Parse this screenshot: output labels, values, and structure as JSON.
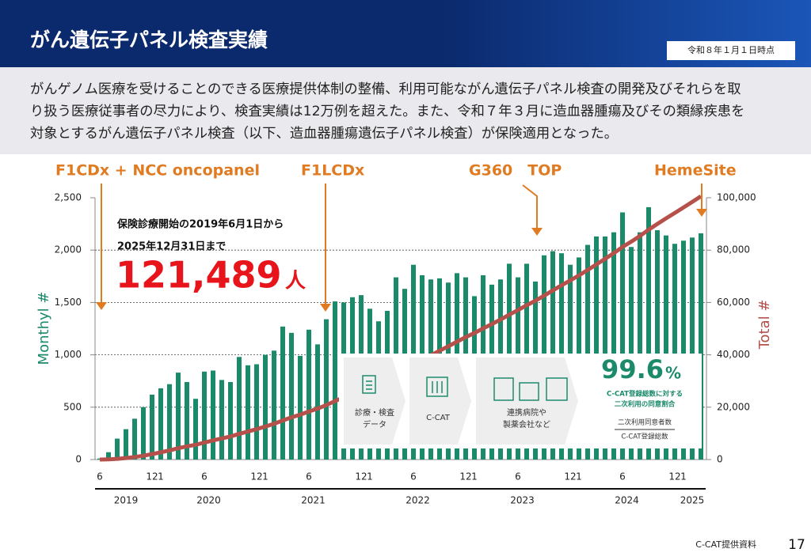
{
  "header": {
    "title": "がん遺伝子パネル検査実績",
    "date": "令和８年１月１日時点"
  },
  "paragraph": [
    "がんゲノム医療を受けることのできる医療提供体制の整備、利用可能ながん遺伝子パネル検査の開発及びそれらを取",
    "り扱う医療従事者の尽力により、検査実績は12万例を超えた。また、令和７年３月に造血器腫瘍及びその類縁疾患を",
    "対象とするがん遺伝子パネル検査（以下、造血器腫瘍遺伝子パネル検査）が保険適用となった。"
  ],
  "chart_data": {
    "type": "bar",
    "ylabel": "Monthyl #",
    "y2label": "Total #",
    "categories": [
      "6",
      null,
      null,
      null,
      null,
      null,
      "12",
      "1",
      null,
      null,
      null,
      null,
      "6",
      null,
      null,
      null,
      null,
      null,
      "12",
      "1",
      null,
      null,
      null,
      null,
      "6",
      null,
      null,
      null,
      null,
      null,
      "12",
      "1",
      null,
      null,
      null,
      null,
      "6",
      null,
      null,
      null,
      null,
      null,
      "12",
      "1",
      null,
      null,
      null,
      null,
      "6",
      null,
      null,
      null,
      null,
      null,
      "12",
      "1",
      null,
      null,
      null,
      null,
      "6",
      null,
      null,
      null,
      null,
      null,
      "12",
      "1",
      null,
      null
    ],
    "years": [
      "2019",
      "2020",
      "2021",
      "2022",
      "2023",
      "2024",
      "2025"
    ],
    "series": [
      {
        "type": "bar",
        "color": "#1b8a6b",
        "values": [
          10,
          70,
          200,
          290,
          390,
          500,
          620,
          680,
          720,
          830,
          740,
          580,
          840,
          850,
          760,
          740,
          980,
          900,
          910,
          1000,
          1040,
          1270,
          1210,
          990,
          1240,
          1100,
          1340,
          1510,
          1500,
          1550,
          1570,
          1440,
          1320,
          1420,
          1740,
          1630,
          1860,
          1760,
          1720,
          1730,
          1690,
          1780,
          1740,
          1560,
          1760,
          1670,
          1720,
          1870,
          1740,
          1870,
          1700,
          1950,
          1990,
          1970,
          1860,
          1930,
          2050,
          2130,
          2130,
          2170,
          2360,
          2030,
          2170,
          2410,
          2190,
          2140,
          2060,
          2090,
          2120,
          2160
        ]
      },
      {
        "type": "line",
        "axis": "y2",
        "color": "#b5504a",
        "values": [
          10,
          80,
          280,
          570,
          960,
          1460,
          2080,
          2760,
          3480,
          4310,
          5050,
          5630,
          6470,
          7320,
          8080,
          8820,
          9800,
          10700,
          11610,
          12610,
          13650,
          14920,
          16130,
          17120,
          18360,
          19460,
          20800,
          22310,
          23810,
          25360,
          26930,
          28370,
          29690,
          31110,
          32850,
          34480,
          36340,
          38100,
          39820,
          41550,
          43240,
          45020,
          46760,
          48320,
          50080,
          51750,
          53470,
          55340,
          57080,
          58950,
          60650,
          62600,
          64590,
          66560,
          68420,
          70350,
          72400,
          74530,
          76660,
          78830,
          81190,
          83220,
          85390,
          87800,
          89990,
          92130,
          94190,
          96280,
          98400,
          100560
        ]
      }
    ],
    "ylim": [
      0,
      2500
    ],
    "yticks": [
      0,
      500,
      {
        "value": 1000,
        "label": "1,000"
      },
      {
        "value": 1500,
        "label": "1,500"
      },
      {
        "value": 2000,
        "label": "2,000"
      },
      {
        "value": 2500,
        "label": "2,500"
      }
    ],
    "y2lim": [
      0,
      100000
    ],
    "y2ticks": [
      0,
      {
        "value": 20000,
        "label": "20,000"
      },
      {
        "value": 40000,
        "label": "40,000"
      },
      {
        "value": 60000,
        "label": "60,000"
      },
      {
        "value": 80000,
        "label": "80,000"
      },
      {
        "value": 100000,
        "label": "100,000"
      }
    ],
    "grid": true,
    "annotations": [
      "F1CDx + NCC oncopanel",
      "F1LCDx",
      "G360　TOP",
      "HemeSite"
    ],
    "callout": {
      "line1": "保険診療開始の2019年6月1日から",
      "line2": "2025年12月31日まで",
      "total": "121,489",
      "unit": "人"
    },
    "flow": {
      "steps": [
        "診療・検査",
        "データ",
        "C-CAT",
        "連携病院や",
        "製薬会社など"
      ],
      "rate": "99.6",
      "rate_unit": "%",
      "rate_note": [
        "C-CAT登録総数に対する",
        "二次利用の同意割合"
      ],
      "numerator": "二次利用同意者数",
      "denominator": "C-CAT登録総数"
    }
  },
  "footer": {
    "source": "C-CAT提供資料",
    "page": "17"
  }
}
